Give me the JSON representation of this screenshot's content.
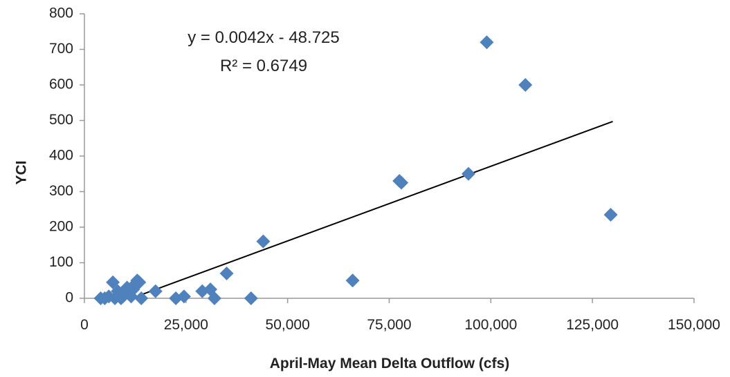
{
  "chart_data": {
    "type": "scatter",
    "xlabel": "April-May Mean Delta Outflow (cfs)",
    "ylabel": "YCI",
    "xlim": [
      0,
      150000
    ],
    "ylim": [
      0,
      800
    ],
    "x_ticks": [
      0,
      25000,
      50000,
      75000,
      100000,
      125000,
      150000
    ],
    "x_tick_labels": [
      "0",
      "25,000",
      "50,000",
      "75,000",
      "100,000",
      "125,000",
      "150,000"
    ],
    "y_ticks": [
      0,
      100,
      200,
      300,
      400,
      500,
      600,
      700,
      800
    ],
    "y_tick_labels": [
      "0",
      "100",
      "200",
      "300",
      "400",
      "500",
      "600",
      "700",
      "800"
    ],
    "marker_color": "#4f81bd",
    "trendline_color": "#000000",
    "grid": false,
    "trendline": {
      "slope": 0.0042,
      "intercept": -48.725,
      "x_range": [
        11600,
        130000
      ],
      "equation": "y = 0.0042x - 48.725",
      "r_squared": "R² = 0.6749"
    },
    "series": [
      {
        "x": [
          4000,
          5000,
          6000,
          7000,
          7500,
          8200,
          9000,
          9500,
          10000,
          10500,
          11000,
          11500,
          12000,
          12500,
          13000,
          13500,
          14000,
          17500,
          22500,
          24500,
          29000,
          31000,
          32000,
          35000,
          41000,
          44000,
          66000,
          77500,
          78000,
          94500,
          99000,
          108500,
          129500
        ],
        "y": [
          0,
          0,
          5,
          45,
          0,
          20,
          0,
          5,
          15,
          30,
          20,
          5,
          25,
          40,
          50,
          45,
          0,
          20,
          0,
          5,
          20,
          25,
          0,
          70,
          0,
          160,
          50,
          330,
          325,
          350,
          720,
          600,
          235
        ]
      }
    ]
  }
}
